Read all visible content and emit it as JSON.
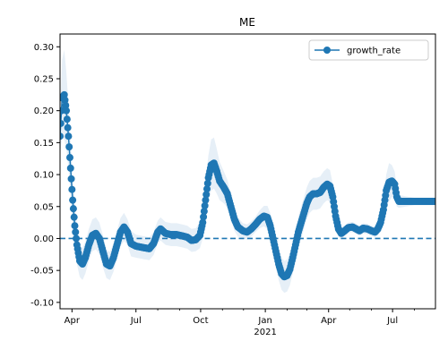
{
  "chart_data": {
    "type": "line",
    "title": "ME",
    "xlabel": "",
    "ylabel": "",
    "x_ticks_major": [
      "Apr",
      "Jul",
      "Oct",
      "Jan",
      "Apr",
      "Jul"
    ],
    "x_ticks_year": [
      "",
      "",
      "",
      "2021",
      "",
      ""
    ],
    "x_range": [
      "2020-03-15",
      "2021-08-31"
    ],
    "ylim": [
      -0.11,
      0.32
    ],
    "y_ticks": [
      "0.30",
      "0.25",
      "0.20",
      "0.15",
      "0.10",
      "0.05",
      "0.00",
      "-0.05",
      "-0.10"
    ],
    "legend": {
      "entries": [
        "growth_rate"
      ],
      "placement": "top-right"
    },
    "reference_line": {
      "y": 0.0,
      "style": "dashed"
    },
    "colors": {
      "series": "#1f77b4",
      "band": "#dbe8f4"
    },
    "series": [
      {
        "name": "growth_rate",
        "points": [
          [
            "2020-03-15",
            0.16
          ],
          [
            "2020-03-18",
            0.22
          ],
          [
            "2020-03-21",
            0.225
          ],
          [
            "2020-03-24",
            0.2
          ],
          [
            "2020-03-27",
            0.16
          ],
          [
            "2020-03-30",
            0.11
          ],
          [
            "2020-04-02",
            0.06
          ],
          [
            "2020-04-05",
            0.02
          ],
          [
            "2020-04-08",
            -0.01
          ],
          [
            "2020-04-12",
            -0.035
          ],
          [
            "2020-04-16",
            -0.04
          ],
          [
            "2020-04-20",
            -0.03
          ],
          [
            "2020-04-25",
            -0.01
          ],
          [
            "2020-04-30",
            0.005
          ],
          [
            "2020-05-05",
            0.008
          ],
          [
            "2020-05-10",
            0.0
          ],
          [
            "2020-05-15",
            -0.02
          ],
          [
            "2020-05-20",
            -0.04
          ],
          [
            "2020-05-25",
            -0.043
          ],
          [
            "2020-05-30",
            -0.03
          ],
          [
            "2020-06-04",
            -0.01
          ],
          [
            "2020-06-09",
            0.01
          ],
          [
            "2020-06-14",
            0.018
          ],
          [
            "2020-06-19",
            0.01
          ],
          [
            "2020-06-24",
            -0.008
          ],
          [
            "2020-07-01",
            -0.012
          ],
          [
            "2020-07-10",
            -0.014
          ],
          [
            "2020-07-20",
            -0.016
          ],
          [
            "2020-07-26",
            -0.008
          ],
          [
            "2020-08-01",
            0.01
          ],
          [
            "2020-08-05",
            0.015
          ],
          [
            "2020-08-12",
            0.008
          ],
          [
            "2020-08-20",
            0.006
          ],
          [
            "2020-08-28",
            0.006
          ],
          [
            "2020-09-05",
            0.004
          ],
          [
            "2020-09-12",
            0.002
          ],
          [
            "2020-09-18",
            -0.003
          ],
          [
            "2020-09-24",
            -0.002
          ],
          [
            "2020-09-30",
            0.005
          ],
          [
            "2020-10-04",
            0.025
          ],
          [
            "2020-10-08",
            0.06
          ],
          [
            "2020-10-12",
            0.095
          ],
          [
            "2020-10-16",
            0.115
          ],
          [
            "2020-10-20",
            0.118
          ],
          [
            "2020-10-24",
            0.105
          ],
          [
            "2020-10-28",
            0.09
          ],
          [
            "2020-11-03",
            0.08
          ],
          [
            "2020-11-08",
            0.07
          ],
          [
            "2020-11-13",
            0.05
          ],
          [
            "2020-11-18",
            0.03
          ],
          [
            "2020-11-23",
            0.018
          ],
          [
            "2020-11-30",
            0.012
          ],
          [
            "2020-12-06",
            0.01
          ],
          [
            "2020-12-12",
            0.015
          ],
          [
            "2020-12-18",
            0.022
          ],
          [
            "2020-12-24",
            0.03
          ],
          [
            "2020-12-30",
            0.035
          ],
          [
            "2021-01-04",
            0.033
          ],
          [
            "2021-01-08",
            0.02
          ],
          [
            "2021-01-12",
            0.0
          ],
          [
            "2021-01-16",
            -0.02
          ],
          [
            "2021-01-20",
            -0.04
          ],
          [
            "2021-01-24",
            -0.055
          ],
          [
            "2021-01-28",
            -0.06
          ],
          [
            "2021-02-01",
            -0.058
          ],
          [
            "2021-02-05",
            -0.048
          ],
          [
            "2021-02-09",
            -0.03
          ],
          [
            "2021-02-13",
            -0.01
          ],
          [
            "2021-02-17",
            0.01
          ],
          [
            "2021-02-21",
            0.025
          ],
          [
            "2021-02-25",
            0.04
          ],
          [
            "2021-03-01",
            0.055
          ],
          [
            "2021-03-05",
            0.065
          ],
          [
            "2021-03-10",
            0.07
          ],
          [
            "2021-03-15",
            0.07
          ],
          [
            "2021-03-20",
            0.072
          ],
          [
            "2021-03-25",
            0.08
          ],
          [
            "2021-03-30",
            0.085
          ],
          [
            "2021-04-03",
            0.082
          ],
          [
            "2021-04-07",
            0.065
          ],
          [
            "2021-04-11",
            0.035
          ],
          [
            "2021-04-15",
            0.015
          ],
          [
            "2021-04-19",
            0.008
          ],
          [
            "2021-04-24",
            0.012
          ],
          [
            "2021-04-29",
            0.017
          ],
          [
            "2021-05-05",
            0.018
          ],
          [
            "2021-05-10",
            0.015
          ],
          [
            "2021-05-15",
            0.012
          ],
          [
            "2021-05-20",
            0.016
          ],
          [
            "2021-05-26",
            0.015
          ],
          [
            "2021-06-01",
            0.012
          ],
          [
            "2021-06-06",
            0.01
          ],
          [
            "2021-06-10",
            0.015
          ],
          [
            "2021-06-14",
            0.025
          ],
          [
            "2021-06-18",
            0.045
          ],
          [
            "2021-06-22",
            0.075
          ],
          [
            "2021-06-26",
            0.088
          ],
          [
            "2021-06-30",
            0.09
          ],
          [
            "2021-07-04",
            0.085
          ],
          [
            "2021-07-07",
            0.065
          ],
          [
            "2021-07-10",
            0.058
          ],
          [
            "2021-07-20",
            0.058
          ],
          [
            "2021-08-01",
            0.058
          ],
          [
            "2021-08-15",
            0.058
          ],
          [
            "2021-08-31",
            0.058
          ]
        ],
        "band_halfwidth": [
          0.03,
          0.06,
          0.07,
          0.06,
          0.05,
          0.045,
          0.04,
          0.035,
          0.03,
          0.025,
          0.025,
          0.025,
          0.025,
          0.025,
          0.025,
          0.025,
          0.025,
          0.022,
          0.022,
          0.022,
          0.022,
          0.022,
          0.022,
          0.02,
          0.02,
          0.018,
          0.018,
          0.018,
          0.018,
          0.018,
          0.018,
          0.018,
          0.018,
          0.018,
          0.018,
          0.018,
          0.018,
          0.018,
          0.02,
          0.025,
          0.03,
          0.035,
          0.04,
          0.04,
          0.035,
          0.03,
          0.025,
          0.022,
          0.02,
          0.018,
          0.015,
          0.012,
          0.012,
          0.012,
          0.012,
          0.014,
          0.016,
          0.018,
          0.02,
          0.022,
          0.024,
          0.025,
          0.025,
          0.025,
          0.025,
          0.025,
          0.025,
          0.025,
          0.025,
          0.025,
          0.025,
          0.025,
          0.025,
          0.025,
          0.025,
          0.025,
          0.025,
          0.025,
          0.025,
          0.02,
          0.015,
          0.012,
          0.01,
          0.008,
          0.008,
          0.008,
          0.008,
          0.008,
          0.008,
          0.008,
          0.008,
          0.008,
          0.01,
          0.015,
          0.02,
          0.025,
          0.03,
          0.025,
          0.02,
          0.015,
          0.01,
          0.008,
          0.006,
          0.006,
          0.006
        ]
      }
    ]
  }
}
